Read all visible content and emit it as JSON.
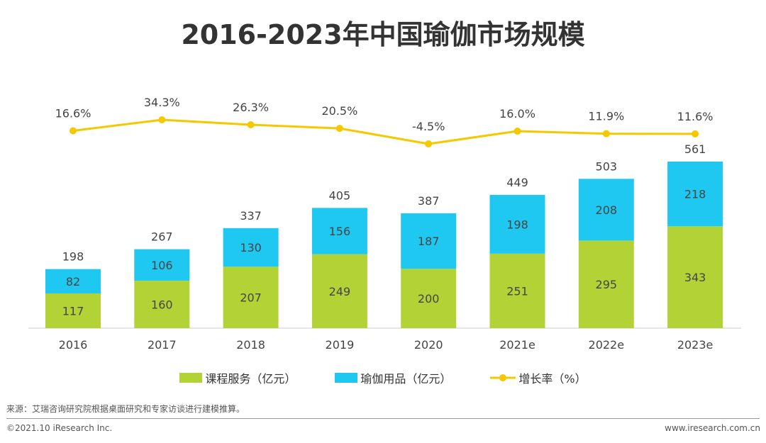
{
  "chart_data": {
    "type": "bar",
    "stacked": true,
    "title": "2016-2023年中国瑜伽市场规模",
    "categories": [
      "2016",
      "2017",
      "2018",
      "2019",
      "2020",
      "2021e",
      "2022e",
      "2023e"
    ],
    "series": [
      {
        "name": "课程服务（亿元）",
        "type": "bar",
        "color": "#b2d235",
        "values": [
          117,
          160,
          207,
          249,
          200,
          251,
          295,
          343
        ]
      },
      {
        "name": "瑜伽用品（亿元）",
        "type": "bar",
        "color": "#1fc8f0",
        "values": [
          82,
          106,
          130,
          156,
          187,
          198,
          208,
          218
        ]
      },
      {
        "name": "增长率（%）",
        "type": "line",
        "color": "#f5c800",
        "values": [
          16.6,
          34.3,
          26.3,
          20.5,
          -4.5,
          16.0,
          11.9,
          11.6
        ],
        "labels": [
          "16.6%",
          "34.3%",
          "26.3%",
          "20.5%",
          "-4.5%",
          "16.0%",
          "11.9%",
          "11.6%"
        ]
      }
    ],
    "totals": [
      198,
      267,
      337,
      405,
      387,
      449,
      503,
      561
    ],
    "legend_position": "bottom",
    "grid": false
  },
  "footer": {
    "source": "来源：艾瑞咨询研究院根据桌面研究和专家访谈进行建模推算。",
    "copyright": "©2021.10 iResearch Inc.",
    "website": "www.iresearch.com.cn"
  }
}
